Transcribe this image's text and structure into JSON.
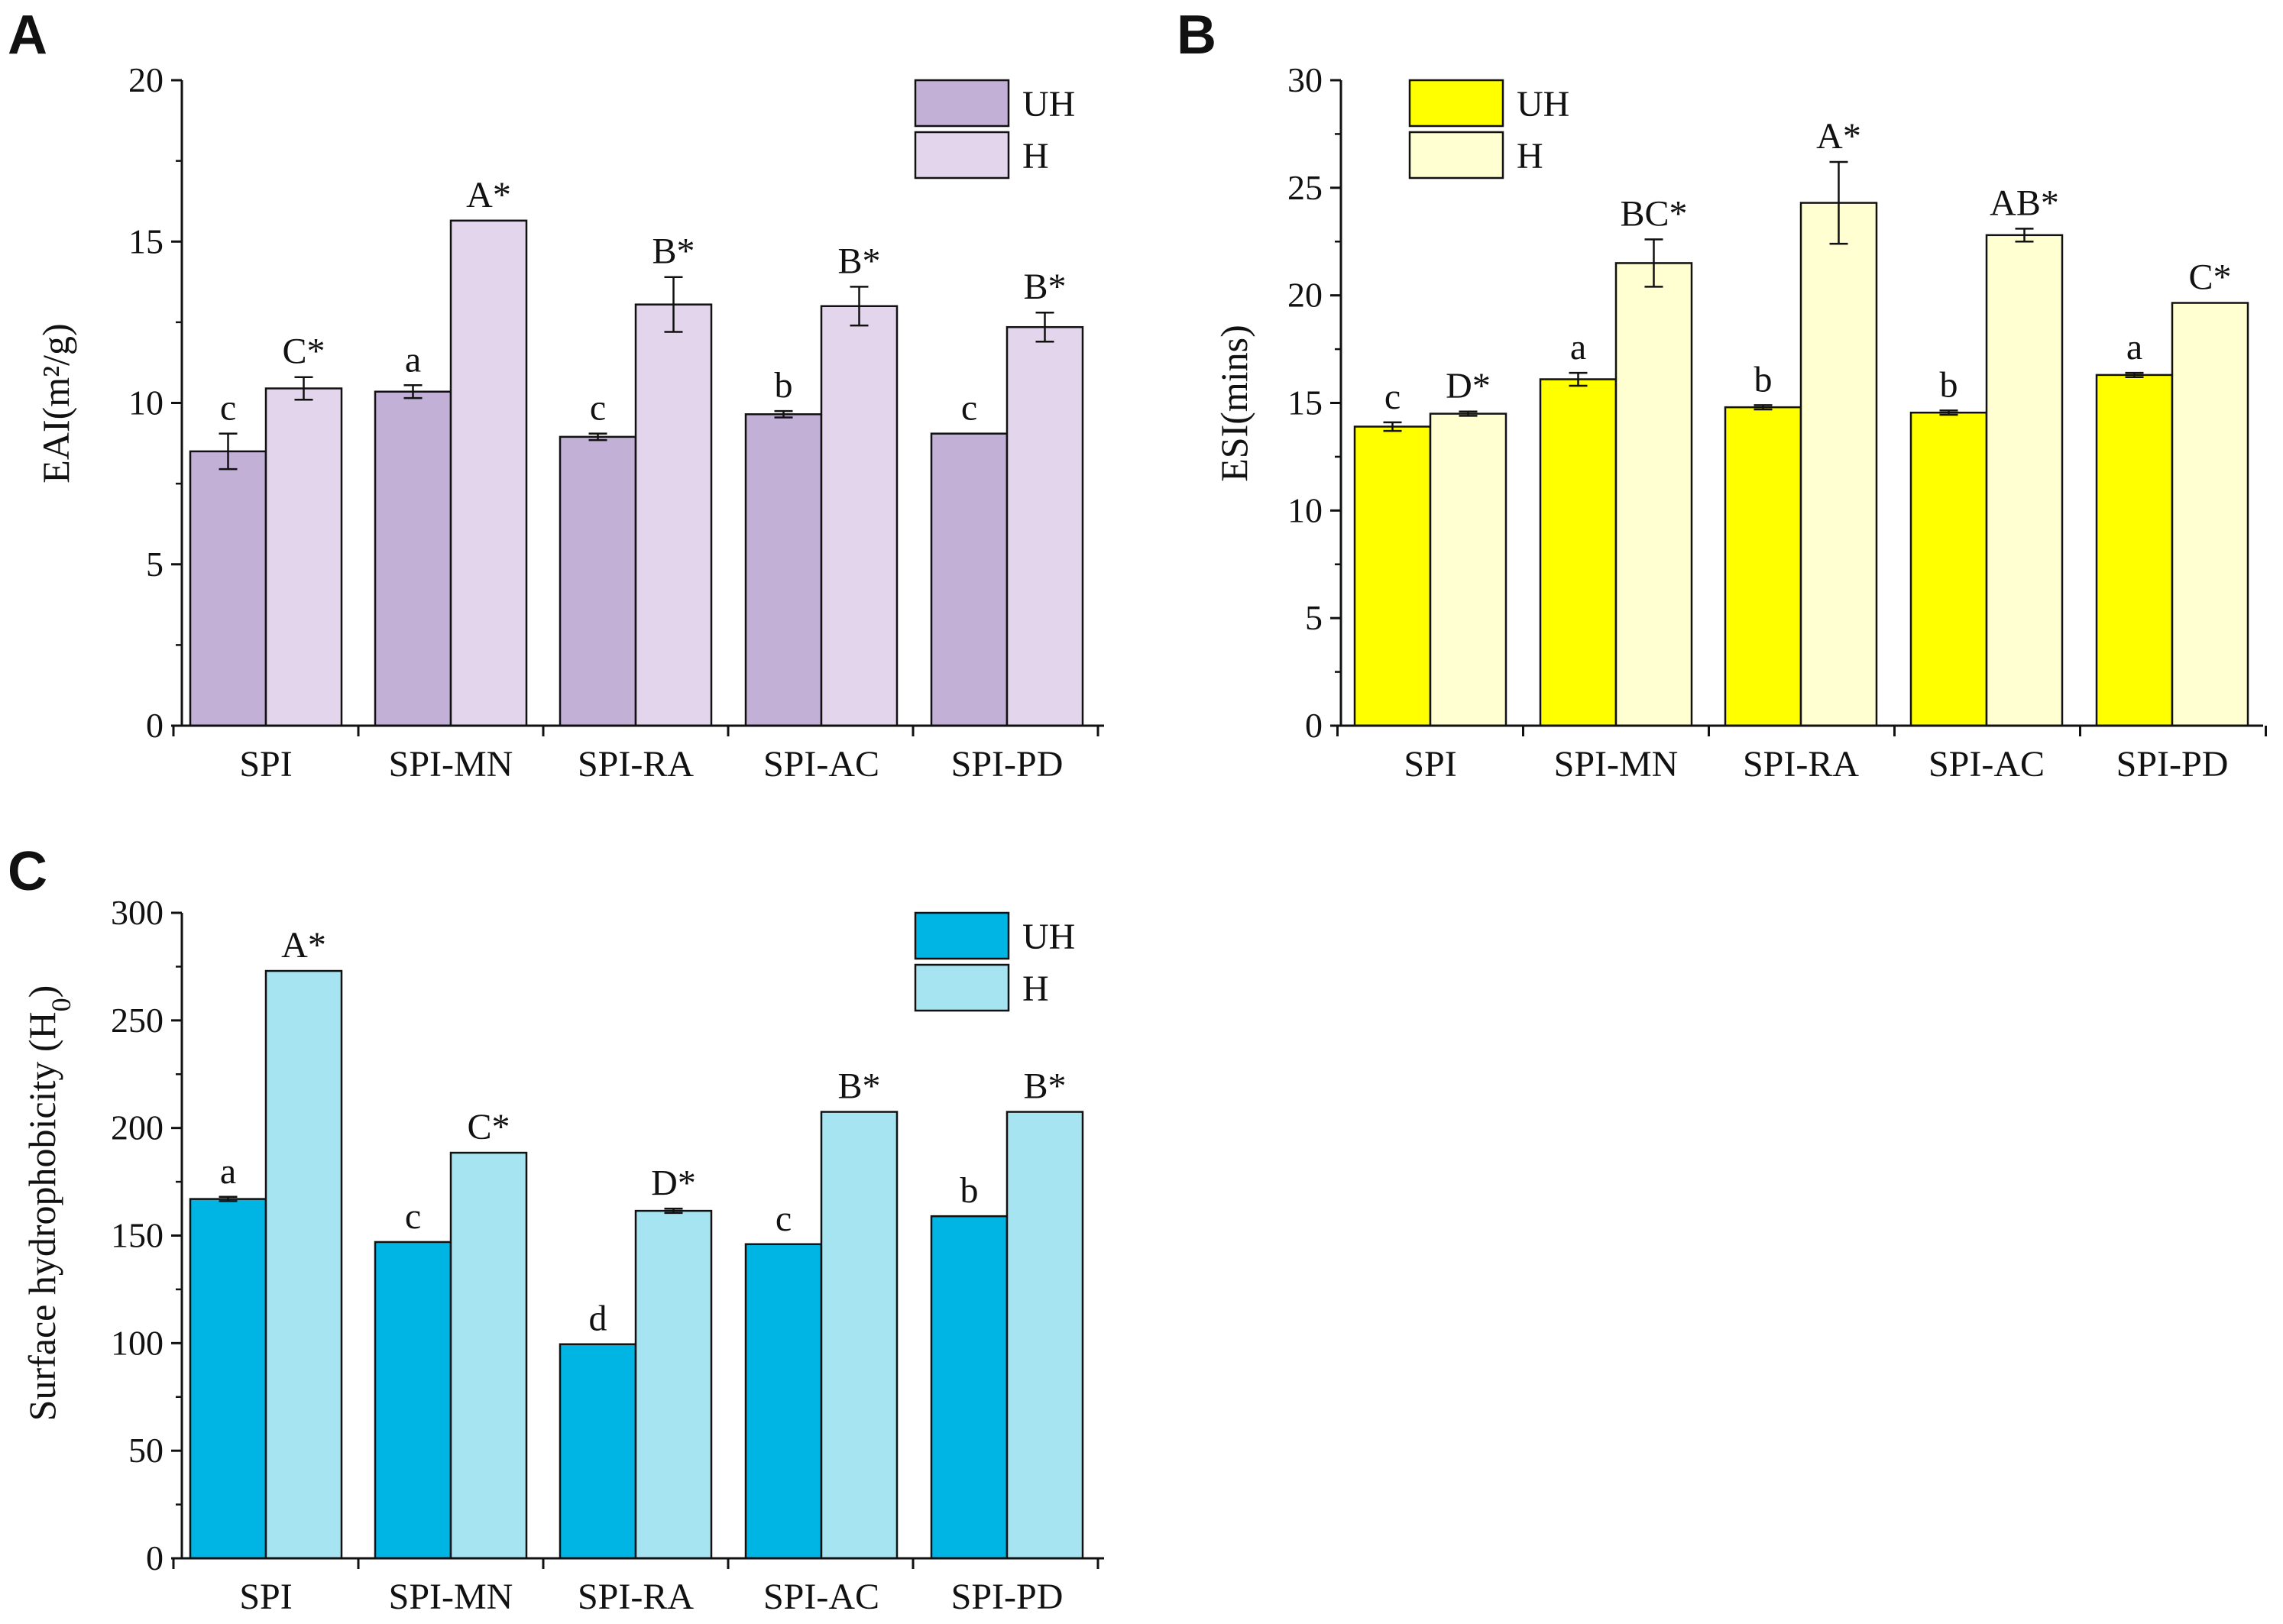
{
  "chart_data": [
    {
      "type": "bar",
      "panel": "A",
      "ylabel": "EAI(m²/g)",
      "ylim": [
        0,
        20
      ],
      "yticks": [
        0,
        5,
        10,
        15,
        20
      ],
      "categories": [
        "SPI",
        "SPI-MN",
        "SPI-RA",
        "SPI-AC",
        "SPI-PD"
      ],
      "series": [
        {
          "name": "UH",
          "color": "#c3b0d6",
          "values": [
            8.5,
            10.35,
            8.95,
            9.65,
            9.05
          ],
          "errors": [
            0.55,
            0.2,
            0.1,
            0.1,
            0.0
          ],
          "labels": [
            "c",
            "a",
            "c",
            "b",
            "c"
          ]
        },
        {
          "name": "H",
          "color": "#e3d6ec",
          "values": [
            10.45,
            15.65,
            13.05,
            13.0,
            12.35
          ],
          "errors": [
            0.35,
            0.0,
            0.85,
            0.6,
            0.45
          ],
          "labels": [
            "C*",
            "A*",
            "B*",
            "B*",
            "B*"
          ]
        }
      ],
      "legend": "top-right"
    },
    {
      "type": "bar",
      "panel": "B",
      "ylabel": "ESI(mins)",
      "ylim": [
        0,
        30
      ],
      "yticks": [
        0,
        5,
        10,
        15,
        20,
        25,
        30
      ],
      "categories": [
        "SPI",
        "SPI-MN",
        "SPI-RA",
        "SPI-AC",
        "SPI-PD"
      ],
      "series": [
        {
          "name": "UH",
          "color": "#ffff00",
          "values": [
            13.9,
            16.1,
            14.8,
            14.55,
            16.3
          ],
          "errors": [
            0.2,
            0.3,
            0.1,
            0.1,
            0.1
          ],
          "labels": [
            "c",
            "a",
            "b",
            "b",
            "a"
          ]
        },
        {
          "name": "H",
          "color": "#ffffd2",
          "values": [
            14.5,
            21.5,
            24.3,
            22.8,
            19.65
          ],
          "errors": [
            0.1,
            1.1,
            1.9,
            0.3,
            0.0
          ],
          "labels": [
            "D*",
            "BC*",
            "A*",
            "AB*",
            "C*"
          ]
        }
      ],
      "legend": "top-left"
    },
    {
      "type": "bar",
      "panel": "C",
      "ylabel": "Surface hydrophobicity (H",
      "ylabel_sub": "0",
      "ylabel_end": ")",
      "ylim": [
        0,
        300
      ],
      "yticks": [
        0,
        50,
        100,
        150,
        200,
        250,
        300
      ],
      "categories": [
        "SPI",
        "SPI-MN",
        "SPI-RA",
        "SPI-AC",
        "SPI-PD"
      ],
      "series": [
        {
          "name": "UH",
          "color": "#00b4e4",
          "values": [
            167,
            147,
            99.5,
            146,
            159
          ],
          "errors": [
            1,
            0,
            0,
            0,
            0
          ],
          "labels": [
            "a",
            "c",
            "d",
            "c",
            "b"
          ]
        },
        {
          "name": "H",
          "color": "#a6e4f2",
          "values": [
            273,
            188.5,
            161.5,
            207.5,
            207.5
          ],
          "errors": [
            0,
            0,
            1,
            0,
            0
          ],
          "labels": [
            "A*",
            "C*",
            "D*",
            "B*",
            "B*"
          ]
        }
      ],
      "legend": "top-right"
    }
  ]
}
